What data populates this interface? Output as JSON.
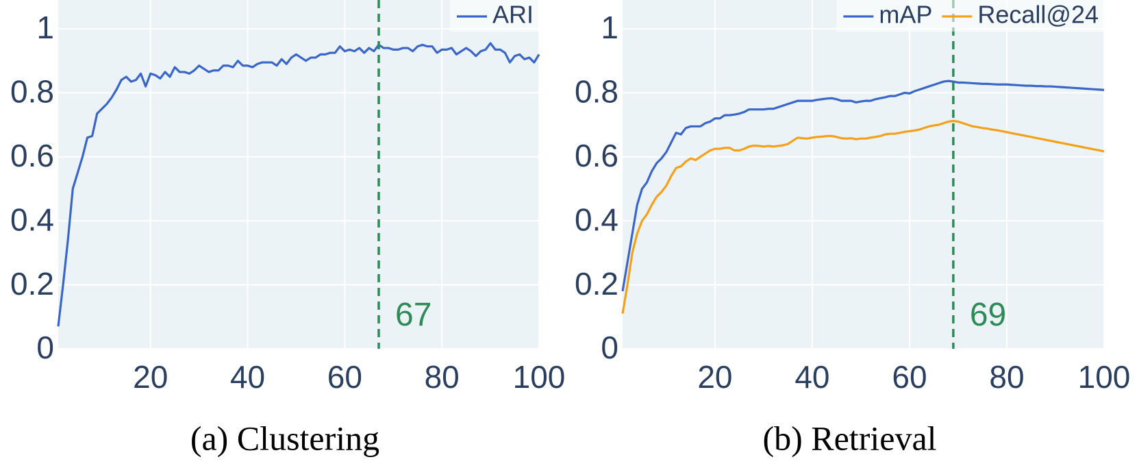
{
  "chart_data": [
    {
      "type": "line",
      "caption": "(a) Clustering",
      "x": [
        1,
        2,
        3,
        4,
        5,
        6,
        7,
        8,
        9,
        10,
        11,
        12,
        13,
        14,
        15,
        16,
        17,
        18,
        19,
        20,
        21,
        22,
        23,
        24,
        25,
        26,
        27,
        28,
        29,
        30,
        31,
        32,
        33,
        34,
        35,
        36,
        37,
        38,
        39,
        40,
        41,
        42,
        43,
        44,
        45,
        46,
        47,
        48,
        49,
        50,
        51,
        52,
        53,
        54,
        55,
        56,
        57,
        58,
        59,
        60,
        61,
        62,
        63,
        64,
        65,
        66,
        67,
        68,
        69,
        70,
        71,
        72,
        73,
        74,
        75,
        76,
        77,
        78,
        79,
        80,
        81,
        82,
        83,
        84,
        85,
        86,
        87,
        88,
        89,
        90,
        91,
        92,
        93,
        94,
        95,
        96,
        97,
        98,
        99,
        100
      ],
      "series": [
        {
          "name": "ARI",
          "color": "#3a66c9",
          "values": [
            0.07,
            0.2,
            0.34,
            0.5,
            0.55,
            0.6,
            0.66,
            0.665,
            0.735,
            0.75,
            0.765,
            0.785,
            0.81,
            0.84,
            0.85,
            0.835,
            0.84,
            0.86,
            0.82,
            0.86,
            0.855,
            0.845,
            0.865,
            0.85,
            0.88,
            0.865,
            0.865,
            0.86,
            0.87,
            0.885,
            0.875,
            0.865,
            0.87,
            0.87,
            0.885,
            0.885,
            0.88,
            0.9,
            0.885,
            0.885,
            0.88,
            0.89,
            0.895,
            0.895,
            0.895,
            0.885,
            0.905,
            0.89,
            0.91,
            0.92,
            0.91,
            0.9,
            0.91,
            0.91,
            0.92,
            0.92,
            0.925,
            0.925,
            0.945,
            0.93,
            0.935,
            0.93,
            0.94,
            0.925,
            0.94,
            0.93,
            0.95,
            0.94,
            0.94,
            0.935,
            0.935,
            0.94,
            0.94,
            0.93,
            0.945,
            0.95,
            0.945,
            0.945,
            0.925,
            0.935,
            0.935,
            0.94,
            0.92,
            0.93,
            0.94,
            0.93,
            0.915,
            0.93,
            0.935,
            0.955,
            0.935,
            0.935,
            0.925,
            0.895,
            0.915,
            0.92,
            0.905,
            0.91,
            0.895,
            0.92
          ]
        }
      ],
      "vline": 67,
      "vline_color": "#2e8b57",
      "xlim": [
        1,
        100
      ],
      "ylim": [
        0,
        1.09
      ],
      "xticks": [
        20,
        40,
        60,
        80,
        100
      ],
      "yticks": [
        0,
        0.2,
        0.4,
        0.6,
        0.8,
        1
      ],
      "grid": true,
      "legend": "top-right"
    },
    {
      "type": "line",
      "caption": "(b) Retrieval",
      "x": [
        1,
        2,
        3,
        4,
        5,
        6,
        7,
        8,
        9,
        10,
        11,
        12,
        13,
        14,
        15,
        16,
        17,
        18,
        19,
        20,
        21,
        22,
        23,
        24,
        25,
        26,
        27,
        28,
        29,
        30,
        31,
        32,
        33,
        34,
        35,
        36,
        37,
        38,
        39,
        40,
        41,
        42,
        43,
        44,
        45,
        46,
        47,
        48,
        49,
        50,
        51,
        52,
        53,
        54,
        55,
        56,
        57,
        58,
        59,
        60,
        61,
        62,
        63,
        64,
        65,
        66,
        67,
        68,
        69,
        70,
        71,
        72,
        73,
        74,
        75,
        76,
        77,
        78,
        79,
        80,
        81,
        82,
        83,
        84,
        85,
        86,
        87,
        88,
        89,
        90,
        91,
        92,
        93,
        94,
        95,
        96,
        97,
        98,
        99,
        100
      ],
      "series": [
        {
          "name": "mAP",
          "color": "#3a66c9",
          "values": [
            0.18,
            0.27,
            0.36,
            0.45,
            0.5,
            0.52,
            0.555,
            0.58,
            0.595,
            0.615,
            0.645,
            0.675,
            0.67,
            0.69,
            0.695,
            0.695,
            0.695,
            0.705,
            0.71,
            0.72,
            0.72,
            0.73,
            0.73,
            0.732,
            0.735,
            0.74,
            0.748,
            0.748,
            0.748,
            0.748,
            0.75,
            0.75,
            0.755,
            0.76,
            0.765,
            0.77,
            0.775,
            0.775,
            0.775,
            0.775,
            0.778,
            0.78,
            0.782,
            0.783,
            0.78,
            0.775,
            0.775,
            0.775,
            0.77,
            0.773,
            0.775,
            0.775,
            0.78,
            0.783,
            0.786,
            0.79,
            0.79,
            0.795,
            0.8,
            0.798,
            0.805,
            0.81,
            0.815,
            0.82,
            0.825,
            0.83,
            0.835,
            0.837,
            0.835,
            0.832,
            0.832,
            0.831,
            0.83,
            0.829,
            0.828,
            0.828,
            0.827,
            0.826,
            0.826,
            0.826,
            0.825,
            0.824,
            0.823,
            0.822,
            0.822,
            0.821,
            0.821,
            0.82,
            0.82,
            0.819,
            0.818,
            0.817,
            0.816,
            0.815,
            0.814,
            0.813,
            0.812,
            0.811,
            0.81,
            0.809
          ]
        },
        {
          "name": "Recall@24",
          "color": "#f5a01a",
          "values": [
            0.11,
            0.2,
            0.3,
            0.36,
            0.4,
            0.42,
            0.45,
            0.475,
            0.49,
            0.51,
            0.54,
            0.565,
            0.57,
            0.585,
            0.595,
            0.59,
            0.6,
            0.61,
            0.62,
            0.625,
            0.625,
            0.628,
            0.628,
            0.62,
            0.62,
            0.625,
            0.632,
            0.635,
            0.634,
            0.632,
            0.634,
            0.632,
            0.634,
            0.636,
            0.64,
            0.65,
            0.66,
            0.658,
            0.657,
            0.66,
            0.662,
            0.663,
            0.665,
            0.665,
            0.662,
            0.658,
            0.657,
            0.658,
            0.655,
            0.657,
            0.657,
            0.66,
            0.662,
            0.665,
            0.67,
            0.672,
            0.672,
            0.675,
            0.678,
            0.68,
            0.682,
            0.685,
            0.69,
            0.695,
            0.698,
            0.7,
            0.705,
            0.71,
            0.712,
            0.71,
            0.705,
            0.7,
            0.695,
            0.693,
            0.69,
            0.688,
            0.685,
            0.683,
            0.68,
            0.677,
            0.674,
            0.671,
            0.668,
            0.665,
            0.662,
            0.659,
            0.656,
            0.653,
            0.65,
            0.647,
            0.644,
            0.641,
            0.638,
            0.635,
            0.632,
            0.629,
            0.626,
            0.623,
            0.62,
            0.617
          ]
        }
      ],
      "vline": 69,
      "vline_color": "#2e8b57",
      "xlim": [
        1,
        100
      ],
      "ylim": [
        0,
        1.09
      ],
      "xticks": [
        20,
        40,
        60,
        80,
        100
      ],
      "yticks": [
        0,
        0.2,
        0.4,
        0.6,
        0.8,
        1
      ],
      "grid": true,
      "legend": "top-right"
    }
  ]
}
